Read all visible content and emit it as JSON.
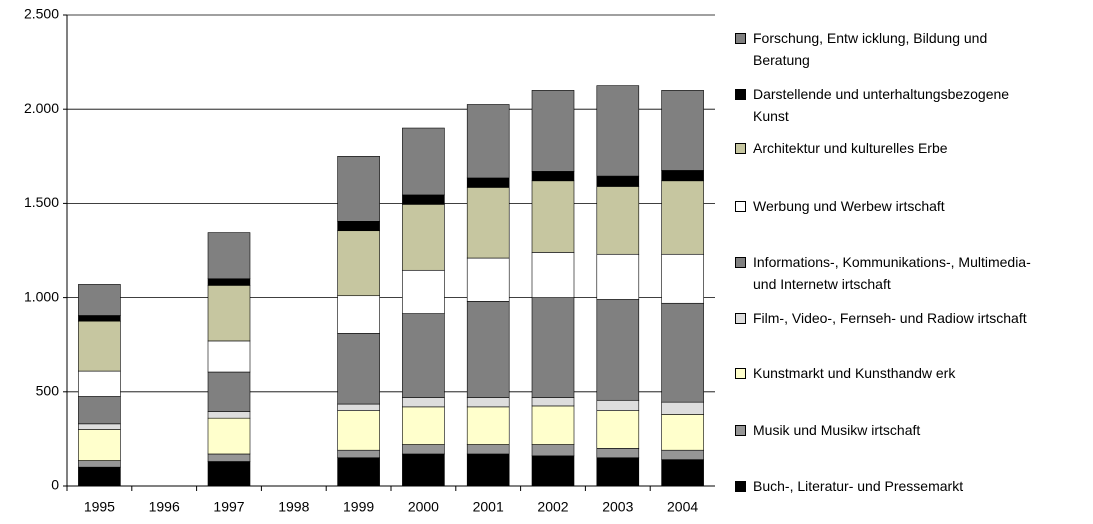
{
  "chart_data": {
    "type": "bar",
    "stacked": true,
    "grid": true,
    "categories": [
      "1995",
      "1996",
      "1997",
      "1998",
      "1999",
      "2000",
      "2001",
      "2002",
      "2003",
      "2004"
    ],
    "ylim": [
      0,
      2500
    ],
    "yticks": [
      0,
      500,
      {
        "value": 1000,
        "label": "1.000"
      },
      {
        "value": 1500,
        "label": "1.500"
      },
      {
        "value": 2000,
        "label": "2.000"
      },
      {
        "value": 2500,
        "label": "2.500"
      }
    ],
    "series": [
      {
        "name": "Buch-, Literatur- und Pressemarkt",
        "color": "#000000",
        "values": [
          100,
          null,
          130,
          null,
          150,
          170,
          170,
          160,
          150,
          140
        ]
      },
      {
        "name": "Musik und Musikw irtschaft",
        "color": "#969696",
        "values": [
          35,
          null,
          40,
          null,
          40,
          50,
          50,
          60,
          50,
          50
        ]
      },
      {
        "name": "Kunstmarkt und Kunsthandw erk",
        "color": "#ffffcc",
        "values": [
          165,
          null,
          190,
          null,
          210,
          200,
          200,
          205,
          200,
          190
        ]
      },
      {
        "name": "Film-, Video-, Fernseh- und Radiow irtschaft",
        "color": "#dddddd",
        "values": [
          30,
          null,
          35,
          null,
          35,
          50,
          50,
          45,
          55,
          65
        ]
      },
      {
        "name": "Informations-, Kommunikations-, Multimedia- und Internetw irtschaft",
        "color": "#808080",
        "values": [
          145,
          null,
          210,
          null,
          375,
          445,
          510,
          530,
          535,
          525
        ]
      },
      {
        "name": "Werbung und Werbew irtschaft",
        "color": "#ffffff",
        "values": [
          135,
          null,
          165,
          null,
          200,
          230,
          230,
          240,
          240,
          260
        ]
      },
      {
        "name": "Architektur und kulturelles Erbe",
        "color": "#c6c6a0",
        "values": [
          265,
          null,
          295,
          null,
          345,
          350,
          375,
          380,
          360,
          390
        ]
      },
      {
        "name": "Darstellende und unterhaltungsbezogene Kunst",
        "color": "#000000",
        "values": [
          30,
          null,
          35,
          null,
          50,
          50,
          50,
          50,
          55,
          55
        ]
      },
      {
        "name": "Forschung, Entw icklung, Bildung und Beratung",
        "color": "#808080",
        "values": [
          165,
          null,
          245,
          null,
          345,
          355,
          390,
          430,
          480,
          425
        ]
      }
    ]
  }
}
